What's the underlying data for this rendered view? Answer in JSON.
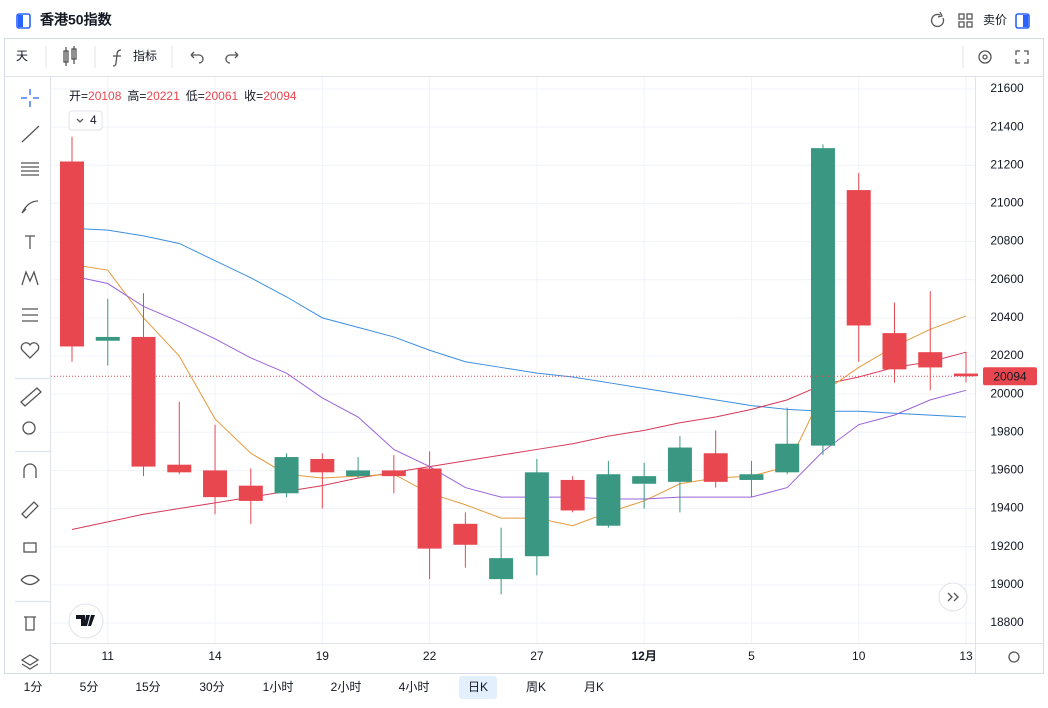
{
  "header": {
    "title": "香港50指数",
    "sell": "卖价"
  },
  "toolbar": {
    "interval": "天",
    "indicators": "指标"
  },
  "ohlc_header": [
    {
      "label": "开=",
      "value": 20108
    },
    {
      "label": "高=",
      "value": 20221
    },
    {
      "label": "低=",
      "value": 20061
    },
    {
      "label": "收=",
      "value": 20094
    }
  ],
  "indicator_count": 4,
  "timeframes": [
    "1分",
    "5分",
    "15分",
    "30分",
    "1小时",
    "2小时",
    "4小时",
    "日K",
    "周K",
    "月K"
  ],
  "active_timeframe": 7,
  "chart_data": {
    "type": "candlestick",
    "categories": [
      null,
      "11",
      null,
      null,
      "14",
      null,
      null,
      "19",
      null,
      null,
      "22",
      null,
      null,
      "27",
      null,
      null,
      "12月",
      null,
      null,
      "5",
      null,
      null,
      "10",
      null,
      null,
      "13"
    ],
    "open": [
      21220,
      20280,
      20300,
      19630,
      19600,
      19520,
      19480,
      19660,
      19570,
      19600,
      19610,
      19320,
      19030,
      19150,
      19550,
      19310,
      19530,
      19540,
      19690,
      19550,
      19590,
      19730,
      21070,
      20320,
      20220,
      20108
    ],
    "high": [
      21350,
      20500,
      20530,
      19960,
      19840,
      19610,
      19690,
      19690,
      19670,
      19680,
      19700,
      19380,
      19300,
      19660,
      19570,
      19650,
      19640,
      19780,
      19810,
      19650,
      19930,
      21310,
      21160,
      20480,
      20540,
      20221
    ],
    "low": [
      20170,
      20150,
      19570,
      19580,
      19370,
      19320,
      19460,
      19400,
      19560,
      19480,
      19030,
      19090,
      18950,
      19050,
      19380,
      19300,
      19400,
      19380,
      19510,
      19460,
      19580,
      19680,
      20170,
      20060,
      20020,
      20061
    ],
    "close": [
      20250,
      20300,
      19620,
      19590,
      19460,
      19440,
      19670,
      19590,
      19600,
      19570,
      19190,
      19210,
      19140,
      19590,
      19390,
      19580,
      19570,
      19720,
      19540,
      19580,
      19740,
      21290,
      20360,
      20130,
      20140,
      20094
    ],
    "up_color": "#3a9882",
    "down_color": "#e8474f",
    "lines": [
      {
        "color": "#3d8ee0",
        "values": [
          20870,
          20860,
          20830,
          20790,
          20700,
          20610,
          20510,
          20400,
          20350,
          20300,
          20230,
          20170,
          20140,
          20110,
          20090,
          20060,
          20030,
          20000,
          19970,
          19940,
          19920,
          19910,
          19910,
          19900,
          19890,
          19880
        ]
      },
      {
        "color": "#d63a5a",
        "values": [
          19290,
          19330,
          19370,
          19400,
          19430,
          19460,
          19490,
          19520,
          19560,
          19590,
          19620,
          19650,
          19680,
          19710,
          19740,
          19780,
          19810,
          19850,
          19880,
          19920,
          19970,
          20050,
          20090,
          20140,
          20170,
          20220
        ]
      },
      {
        "color": "#e59a3c",
        "values": [
          20680,
          20650,
          20400,
          20200,
          19870,
          19690,
          19580,
          19560,
          19570,
          19580,
          19480,
          19420,
          19350,
          19350,
          19310,
          19380,
          19440,
          19530,
          19560,
          19570,
          19620,
          20010,
          20140,
          20250,
          20340,
          20410
        ]
      },
      {
        "color": "#9b62d8",
        "values": [
          20620,
          20580,
          20460,
          20380,
          20290,
          20190,
          20110,
          19980,
          19880,
          19710,
          19620,
          19510,
          19460,
          19460,
          19460,
          19450,
          19450,
          19460,
          19460,
          19460,
          19510,
          19700,
          19840,
          19890,
          19970,
          20020
        ]
      }
    ],
    "last_price": 20094,
    "ylim": [
      18695,
      21663
    ],
    "yticks": [
      18800,
      19000,
      19200,
      19400,
      19600,
      19800,
      20000,
      20200,
      20400,
      20600,
      20800,
      21000,
      21200,
      21400,
      21600
    ],
    "grid": true
  }
}
